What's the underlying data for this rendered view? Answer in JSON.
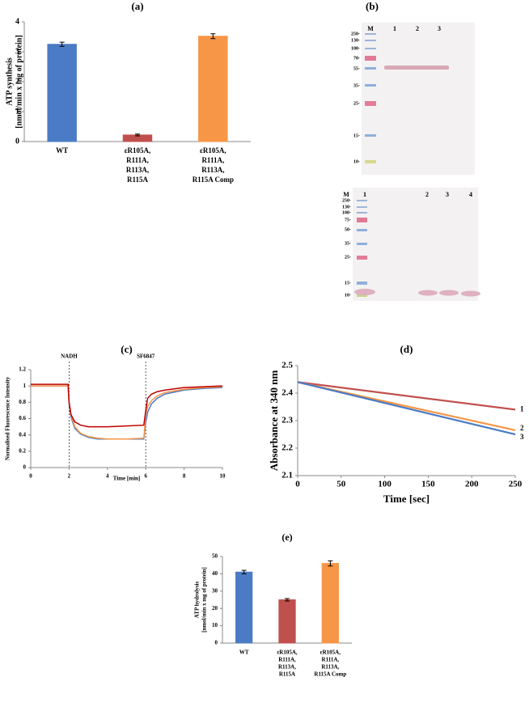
{
  "chart_data": [
    {
      "type": "bar",
      "title": "(a)",
      "ylabel": [
        "ATP synthesis",
        "[nmol/min  x mg of protein]"
      ],
      "categories": [
        [
          "WT"
        ],
        [
          "εR105A,",
          "R111A,",
          "R113A,",
          "R115A"
        ],
        [
          "εR105A,",
          "R111A,",
          "R113A,",
          "R115A Comp"
        ]
      ],
      "values": [
        3.25,
        0.22,
        3.52
      ],
      "errors": [
        0.07,
        0.03,
        0.08
      ],
      "colors": [
        "#4a7bc4",
        "#c0504d",
        "#f79646"
      ],
      "ylim": [
        0,
        4
      ],
      "yticks": [
        0,
        1,
        2,
        3,
        4
      ]
    },
    {
      "type": "line",
      "title": "(c)",
      "xlabel": "Time [min]",
      "ylabel": "Normalised Fluorescence Intensity",
      "x": [
        0,
        1,
        1.95,
        2,
        2.1,
        2.3,
        2.6,
        3,
        3.5,
        4,
        5,
        5.9,
        6,
        6.1,
        6.3,
        6.6,
        7,
        8,
        9,
        10
      ],
      "series": [
        {
          "color": "#4a7bc4",
          "values": [
            1.0,
            1.0,
            1.0,
            0.78,
            0.62,
            0.48,
            0.41,
            0.37,
            0.35,
            0.35,
            0.35,
            0.35,
            0.55,
            0.68,
            0.78,
            0.85,
            0.9,
            0.95,
            0.97,
            0.98
          ]
        },
        {
          "color": "#f79646",
          "values": [
            1.0,
            1.0,
            1.0,
            0.8,
            0.65,
            0.5,
            0.42,
            0.38,
            0.36,
            0.35,
            0.35,
            0.36,
            0.65,
            0.75,
            0.82,
            0.88,
            0.92,
            0.96,
            0.98,
            0.99
          ]
        },
        {
          "color": "#c00000",
          "values": [
            1.02,
            1.02,
            1.02,
            0.8,
            0.65,
            0.56,
            0.52,
            0.5,
            0.5,
            0.5,
            0.51,
            0.52,
            0.7,
            0.85,
            0.9,
            0.93,
            0.95,
            0.98,
            0.99,
            1.0
          ]
        }
      ],
      "annotations": [
        {
          "x": 2,
          "text": "NADH"
        },
        {
          "x": 6,
          "text": "SF6847"
        }
      ],
      "xlim": [
        0,
        10
      ],
      "xticks": [
        0,
        2,
        4,
        6,
        8,
        10
      ],
      "ylim": [
        0,
        1.2
      ],
      "yticks": [
        0,
        0.2,
        0.4,
        0.6,
        0.8,
        1,
        1.2
      ]
    },
    {
      "type": "line",
      "title": "(d)",
      "xlabel": "Time [sec]",
      "ylabel": "Absorbance at 340 nm",
      "x": [
        0,
        250
      ],
      "series": [
        {
          "name": "1",
          "color": "#c0504d",
          "values": [
            2.44,
            2.34
          ]
        },
        {
          "name": "2",
          "color": "#f79646",
          "values": [
            2.44,
            2.265
          ]
        },
        {
          "name": "3",
          "color": "#4a7bc4",
          "values": [
            2.44,
            2.25
          ]
        }
      ],
      "xlim": [
        0,
        250
      ],
      "xticks": [
        0,
        50,
        100,
        150,
        200,
        250
      ],
      "ylim": [
        2.1,
        2.5
      ],
      "yticks": [
        2.1,
        2.2,
        2.3,
        2.4,
        2.5
      ]
    },
    {
      "type": "bar",
      "title": "(e)",
      "ylabel": [
        "ATP hydrolysis",
        "[nmol/min  x mg of protein]"
      ],
      "categories": [
        [
          "WT"
        ],
        [
          "εR105A,",
          "R111A,",
          "R113A,",
          "R115A"
        ],
        [
          "εR105A,",
          "R111A,",
          "R113A,",
          "R115A Comp"
        ]
      ],
      "values": [
        41,
        25,
        46
      ],
      "errors": [
        1,
        0.7,
        1.5
      ],
      "colors": [
        "#4a7bc4",
        "#c0504d",
        "#f79646"
      ],
      "ylim": [
        0,
        50
      ],
      "yticks": [
        0,
        10,
        20,
        30,
        40,
        50
      ]
    }
  ],
  "panel_b": {
    "label": "(b)",
    "gel_top": {
      "lanes": [
        "M",
        "1",
        "2",
        "3"
      ],
      "markers": [
        "250-",
        "130-",
        "100-",
        "70-",
        "55-",
        "35-",
        "25-",
        "15-",
        "10-"
      ]
    },
    "gel_bottom": {
      "lanes": [
        "M",
        "1",
        "2",
        "3",
        "4"
      ],
      "markers": [
        "250-",
        "130-",
        "100-",
        "75-",
        "50-",
        "35-",
        "25-",
        "15-",
        "10-"
      ]
    }
  }
}
